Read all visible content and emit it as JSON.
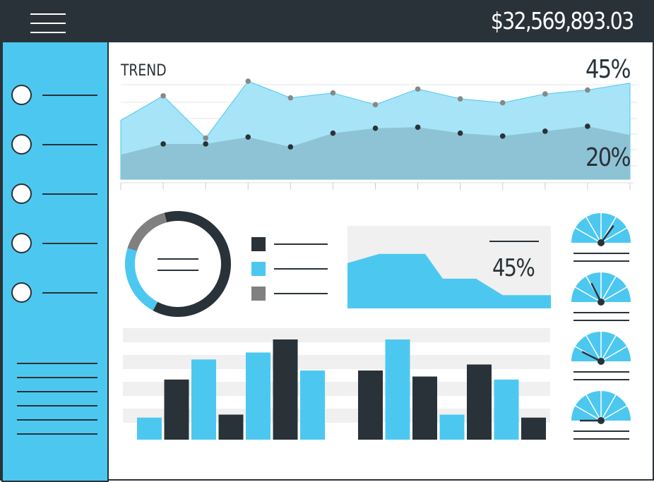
{
  "header": {
    "balance": "$32,569,893.03"
  },
  "trend": {
    "title": "TREND",
    "upper_value": "45%",
    "lower_value": "20%",
    "chart_data": {
      "type": "area",
      "series": [
        {
          "values": [
            60,
            85,
            42,
            100,
            83,
            88,
            76,
            92,
            82,
            78,
            87,
            91,
            98
          ]
        },
        {
          "values": [
            25,
            36,
            36,
            43,
            33,
            47,
            52,
            53,
            47,
            44,
            49,
            54,
            45
          ]
        }
      ]
    }
  },
  "donut": {
    "chart_data": {
      "type": "pie",
      "values": [
        62,
        22,
        16
      ],
      "colors": [
        "#2a3239",
        "#4cc8f0",
        "#808080"
      ]
    },
    "legend_colors": [
      "#2a3239",
      "#4cc8f0",
      "#808080"
    ]
  },
  "progress_panel": {
    "value": "45%",
    "chart_data": {
      "type": "area",
      "values": [
        55,
        66,
        66,
        36,
        36,
        16,
        16
      ]
    }
  },
  "bars": {
    "chart_data": {
      "type": "bar",
      "groups": [
        {
          "values": [
            22,
            60,
            80,
            25,
            87,
            100,
            69
          ],
          "colors": [
            "blue",
            "dark",
            "blue",
            "dark",
            "blue",
            "dark",
            "blue"
          ]
        },
        {
          "values": [
            69,
            100,
            63,
            25,
            75,
            60,
            22
          ],
          "colors": [
            "dark",
            "blue",
            "dark",
            "blue",
            "dark",
            "blue",
            "dark"
          ]
        }
      ]
    }
  },
  "gauges": {
    "levels": [
      0.7,
      0.35,
      0.15,
      0.0
    ]
  },
  "colors": {
    "dark": "#2a3239",
    "blue": "#4cc8f0",
    "light_blue": "#a7e4f7",
    "steel": "#8cc1d3",
    "gray": "#808080",
    "panel": "#f0f0f0"
  }
}
